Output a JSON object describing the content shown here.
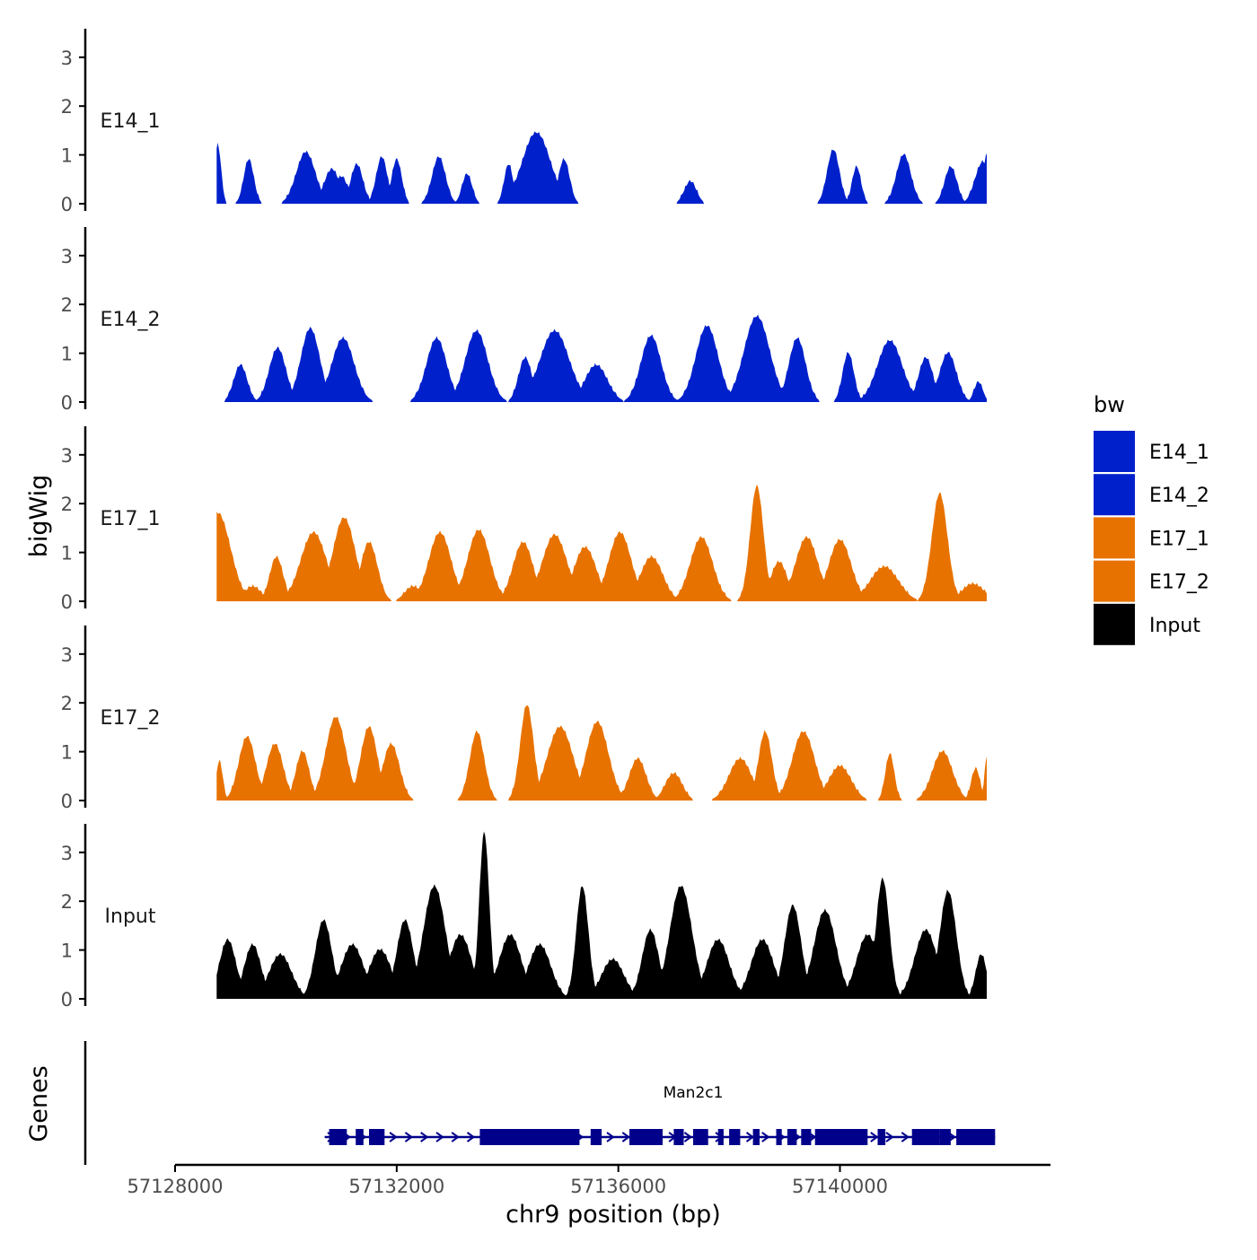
{
  "chart_data": {
    "type": "area",
    "title": "",
    "xlabel": "chr9 position (bp)",
    "ylabel": "bigWig",
    "genes_label": "Genes",
    "x_range": [
      57128000,
      57143800
    ],
    "x_ticks": [
      57128000,
      57132000,
      57136000,
      57140000
    ],
    "x_tick_labels": [
      "57128000",
      "57132000",
      "57136000",
      "57140000"
    ],
    "y_range": [
      0,
      3.6
    ],
    "y_ticks": [
      0,
      1,
      2,
      3
    ],
    "y_tick_labels": [
      "0",
      "1",
      "2",
      "3"
    ],
    "legend": {
      "title": "bw",
      "position": "right",
      "entries": [
        {
          "label": "E14_1",
          "color": "#0020CC"
        },
        {
          "label": "E14_2",
          "color": "#0020CC"
        },
        {
          "label": "E17_1",
          "color": "#E87200"
        },
        {
          "label": "E17_2",
          "color": "#E87200"
        },
        {
          "label": "Input",
          "color": "#000000"
        }
      ]
    },
    "series": [
      {
        "name": "E14_1",
        "color": "#0020CC",
        "start": 57128750,
        "end": 57142650,
        "peaks": [
          [
            57128770,
            1.2,
            60
          ],
          [
            57129330,
            0.9,
            90
          ],
          [
            57130360,
            1.05,
            170
          ],
          [
            57130830,
            0.7,
            140
          ],
          [
            57131000,
            0.55,
            120
          ],
          [
            57131280,
            0.8,
            110
          ],
          [
            57131730,
            0.95,
            100
          ],
          [
            57132000,
            0.9,
            90
          ],
          [
            57132760,
            0.95,
            120
          ],
          [
            57133270,
            0.6,
            90
          ],
          [
            57134020,
            0.8,
            80
          ],
          [
            57134520,
            1.45,
            250
          ],
          [
            57135020,
            0.9,
            100
          ],
          [
            57137300,
            0.45,
            110
          ],
          [
            57139880,
            1.1,
            110
          ],
          [
            57140300,
            0.75,
            80
          ],
          [
            57141150,
            1.0,
            130
          ],
          [
            57142000,
            0.75,
            110
          ],
          [
            57142580,
            0.85,
            140
          ],
          [
            57142650,
            1.0,
            60
          ]
        ]
      },
      {
        "name": "E14_2",
        "color": "#0020CC",
        "start": 57128750,
        "end": 57142650,
        "peaks": [
          [
            57129180,
            0.75,
            120
          ],
          [
            57129850,
            1.1,
            150
          ],
          [
            57130440,
            1.5,
            170
          ],
          [
            57131030,
            1.3,
            200
          ],
          [
            57132720,
            1.3,
            180
          ],
          [
            57133440,
            1.45,
            200
          ],
          [
            57134320,
            0.9,
            120
          ],
          [
            57134850,
            1.45,
            260
          ],
          [
            57135600,
            0.75,
            200
          ],
          [
            57136590,
            1.35,
            180
          ],
          [
            57137600,
            1.55,
            200
          ],
          [
            57138500,
            1.75,
            230
          ],
          [
            57139230,
            1.3,
            150
          ],
          [
            57140150,
            1.0,
            100
          ],
          [
            57140900,
            1.25,
            220
          ],
          [
            57141550,
            0.9,
            130
          ],
          [
            57141950,
            1.0,
            150
          ],
          [
            57142500,
            0.4,
            80
          ]
        ]
      },
      {
        "name": "E17_1",
        "color": "#E87200",
        "start": 57128750,
        "end": 57142650,
        "peaks": [
          [
            57128770,
            1.8,
            230
          ],
          [
            57129400,
            0.3,
            150
          ],
          [
            57129830,
            0.9,
            120
          ],
          [
            57130500,
            1.4,
            230
          ],
          [
            57131050,
            1.7,
            200
          ],
          [
            57131500,
            1.2,
            150
          ],
          [
            57132300,
            0.3,
            150
          ],
          [
            57132780,
            1.4,
            200
          ],
          [
            57133480,
            1.45,
            200
          ],
          [
            57134280,
            1.2,
            180
          ],
          [
            57134850,
            1.35,
            220
          ],
          [
            57135400,
            1.1,
            200
          ],
          [
            57136030,
            1.4,
            200
          ],
          [
            57136600,
            0.9,
            200
          ],
          [
            57137500,
            1.3,
            200
          ],
          [
            57138500,
            2.35,
            120
          ],
          [
            57138900,
            0.8,
            150
          ],
          [
            57139400,
            1.3,
            200
          ],
          [
            57140000,
            1.25,
            200
          ],
          [
            57140800,
            0.7,
            250
          ],
          [
            57141800,
            2.2,
            140
          ],
          [
            57142400,
            0.35,
            200
          ]
        ]
      },
      {
        "name": "E17_2",
        "color": "#E87200",
        "start": 57128750,
        "end": 57142650,
        "peaks": [
          [
            57128800,
            0.8,
            60
          ],
          [
            57129300,
            1.3,
            150
          ],
          [
            57129800,
            1.15,
            150
          ],
          [
            57130300,
            1.0,
            120
          ],
          [
            57130900,
            1.7,
            180
          ],
          [
            57131500,
            1.5,
            150
          ],
          [
            57131900,
            1.15,
            150
          ],
          [
            57133450,
            1.4,
            130
          ],
          [
            57134350,
            1.95,
            120
          ],
          [
            57134950,
            1.5,
            230
          ],
          [
            57135620,
            1.6,
            200
          ],
          [
            57136350,
            0.85,
            150
          ],
          [
            57137000,
            0.55,
            150
          ],
          [
            57138200,
            0.85,
            200
          ],
          [
            57138650,
            1.4,
            120
          ],
          [
            57139340,
            1.4,
            200
          ],
          [
            57140000,
            0.7,
            200
          ],
          [
            57140900,
            0.95,
            80
          ],
          [
            57141850,
            1.0,
            180
          ],
          [
            57142450,
            0.65,
            80
          ],
          [
            57142650,
            0.9,
            40
          ]
        ]
      },
      {
        "name": "Input",
        "color": "#000000",
        "start": 57128750,
        "end": 57142650,
        "peaks": [
          [
            57128950,
            1.2,
            150
          ],
          [
            57129400,
            1.1,
            150
          ],
          [
            57129900,
            0.9,
            200
          ],
          [
            57130680,
            1.6,
            150
          ],
          [
            57131200,
            1.1,
            200
          ],
          [
            57131700,
            1.0,
            200
          ],
          [
            57132150,
            1.6,
            150
          ],
          [
            57132680,
            2.3,
            200
          ],
          [
            57133150,
            1.3,
            200
          ],
          [
            57133580,
            3.4,
            90
          ],
          [
            57134050,
            1.3,
            200
          ],
          [
            57134580,
            1.1,
            200
          ],
          [
            57135350,
            2.3,
            110
          ],
          [
            57135900,
            0.8,
            200
          ],
          [
            57136580,
            1.4,
            150
          ],
          [
            57137130,
            2.3,
            200
          ],
          [
            57137800,
            1.2,
            200
          ],
          [
            57138600,
            1.2,
            200
          ],
          [
            57139150,
            1.9,
            150
          ],
          [
            57139730,
            1.8,
            200
          ],
          [
            57140500,
            1.3,
            200
          ],
          [
            57140770,
            2.45,
            120
          ],
          [
            57141550,
            1.4,
            200
          ],
          [
            57141950,
            2.2,
            150
          ],
          [
            57142550,
            0.9,
            100
          ]
        ]
      }
    ],
    "genes": [
      {
        "name": "Man2c1",
        "strand": "+",
        "start": 57130700,
        "end": 57142800,
        "exons": [
          [
            57130780,
            57131100
          ],
          [
            57131260,
            57131400
          ],
          [
            57131500,
            57131780
          ],
          [
            57133500,
            57135050
          ],
          [
            57135050,
            57135300
          ],
          [
            57135500,
            57135700
          ],
          [
            57136200,
            57136800
          ],
          [
            57137000,
            57137180
          ],
          [
            57137350,
            57137620
          ],
          [
            57137800,
            57137900
          ],
          [
            57138000,
            57138200
          ],
          [
            57138430,
            57138550
          ],
          [
            57138850,
            57138950
          ],
          [
            57139050,
            57139220
          ],
          [
            57139300,
            57139480
          ],
          [
            57139550,
            57140500
          ],
          [
            57140680,
            57140820
          ],
          [
            57141300,
            57141800
          ],
          [
            57141800,
            57142000
          ],
          [
            57142100,
            57142800
          ]
        ]
      }
    ]
  }
}
